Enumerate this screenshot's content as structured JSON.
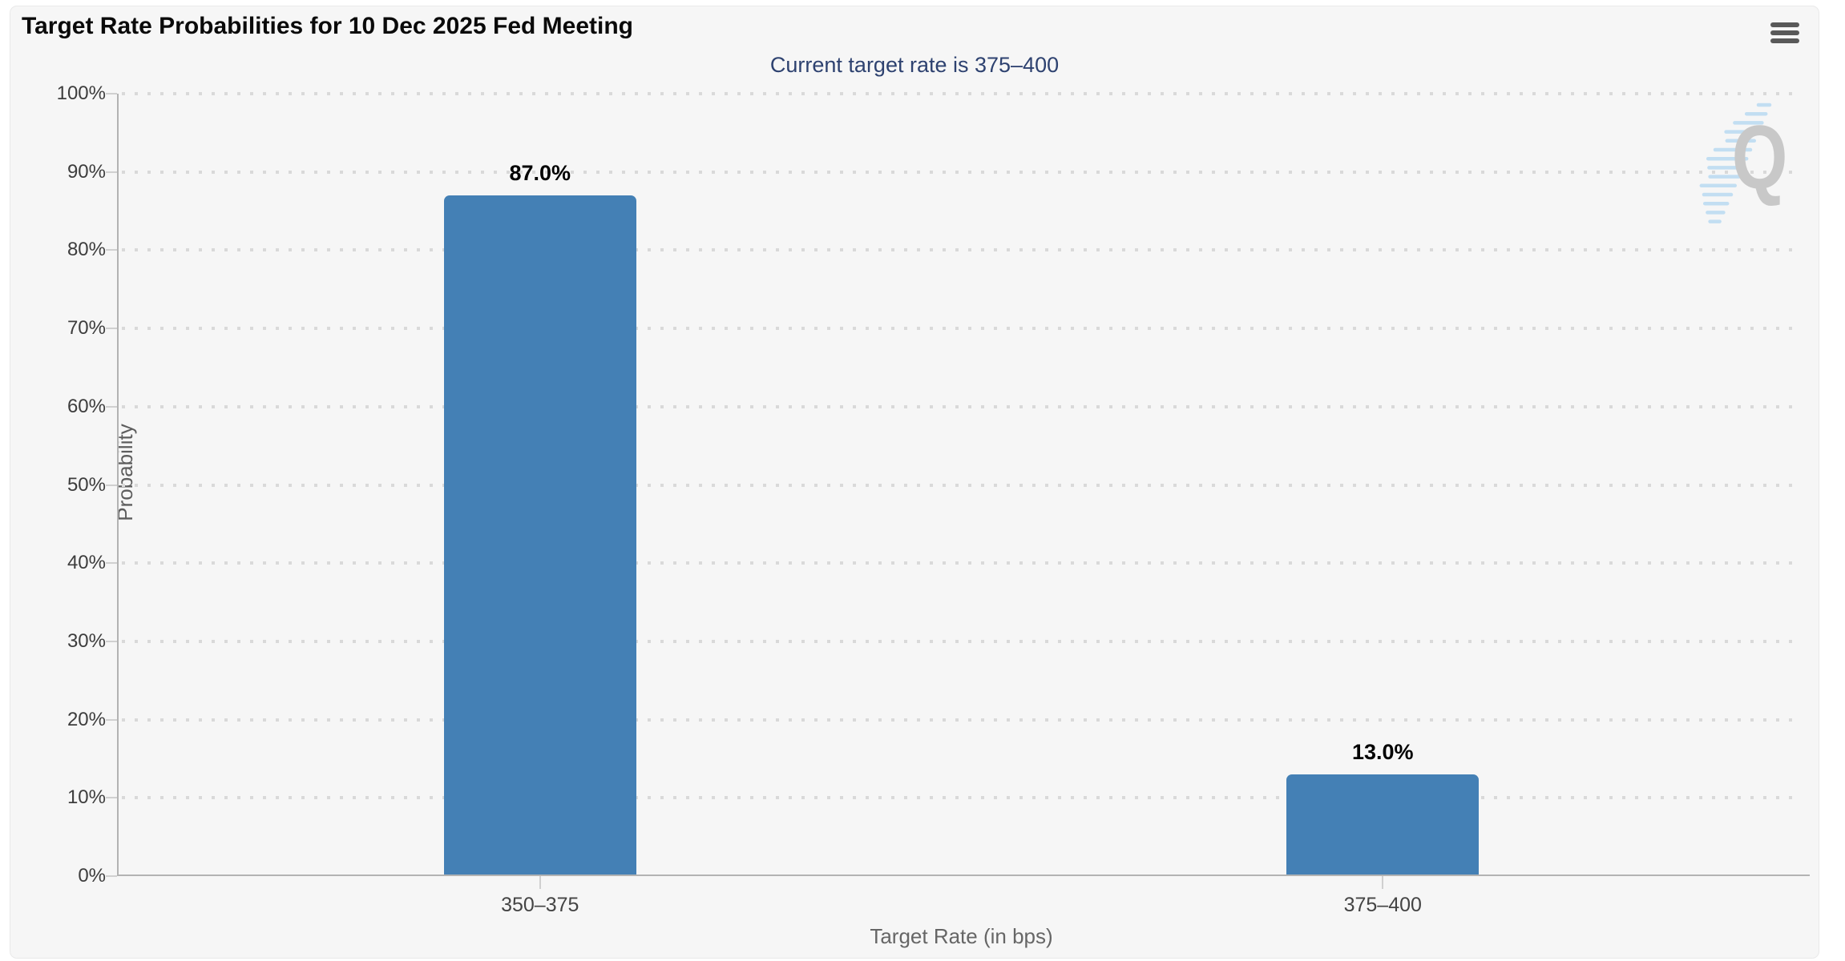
{
  "chart_data": {
    "type": "bar",
    "title": "Target Rate Probabilities for 10 Dec 2025 Fed Meeting",
    "subtitle": "Current target rate is 375–400",
    "xlabel": "Target Rate (in bps)",
    "ylabel": "Probability",
    "categories": [
      "350–375",
      "375–400"
    ],
    "values": [
      87.0,
      13.0
    ],
    "value_labels": [
      "87.0%",
      "13.0%"
    ],
    "ylim": [
      0,
      100
    ],
    "ytick_step": 10,
    "ytick_suffix": "%",
    "grid": "horizontal-dotted",
    "legend": "none",
    "bar_color": "#4480b5"
  },
  "menu": {
    "icon": "hamburger-menu"
  },
  "watermark": {
    "letter": "Q",
    "letter_color": "#c8c8c8",
    "accent_color": "#b9daf2"
  },
  "colors": {
    "page_background": "#ffffff",
    "panel_background": "#f6f6f6",
    "title": "#0a0a0a",
    "subtitle": "#2e4270",
    "axis_line": "#b3b3b3",
    "grid_dot": "#d9d9d9",
    "tick_mark": "#d0d0d0",
    "y_tick_label": "#3d3d3d",
    "x_tick_label": "#444444",
    "axis_title": "#666666",
    "value_label": "#000000",
    "menu_icon": "#595959"
  }
}
